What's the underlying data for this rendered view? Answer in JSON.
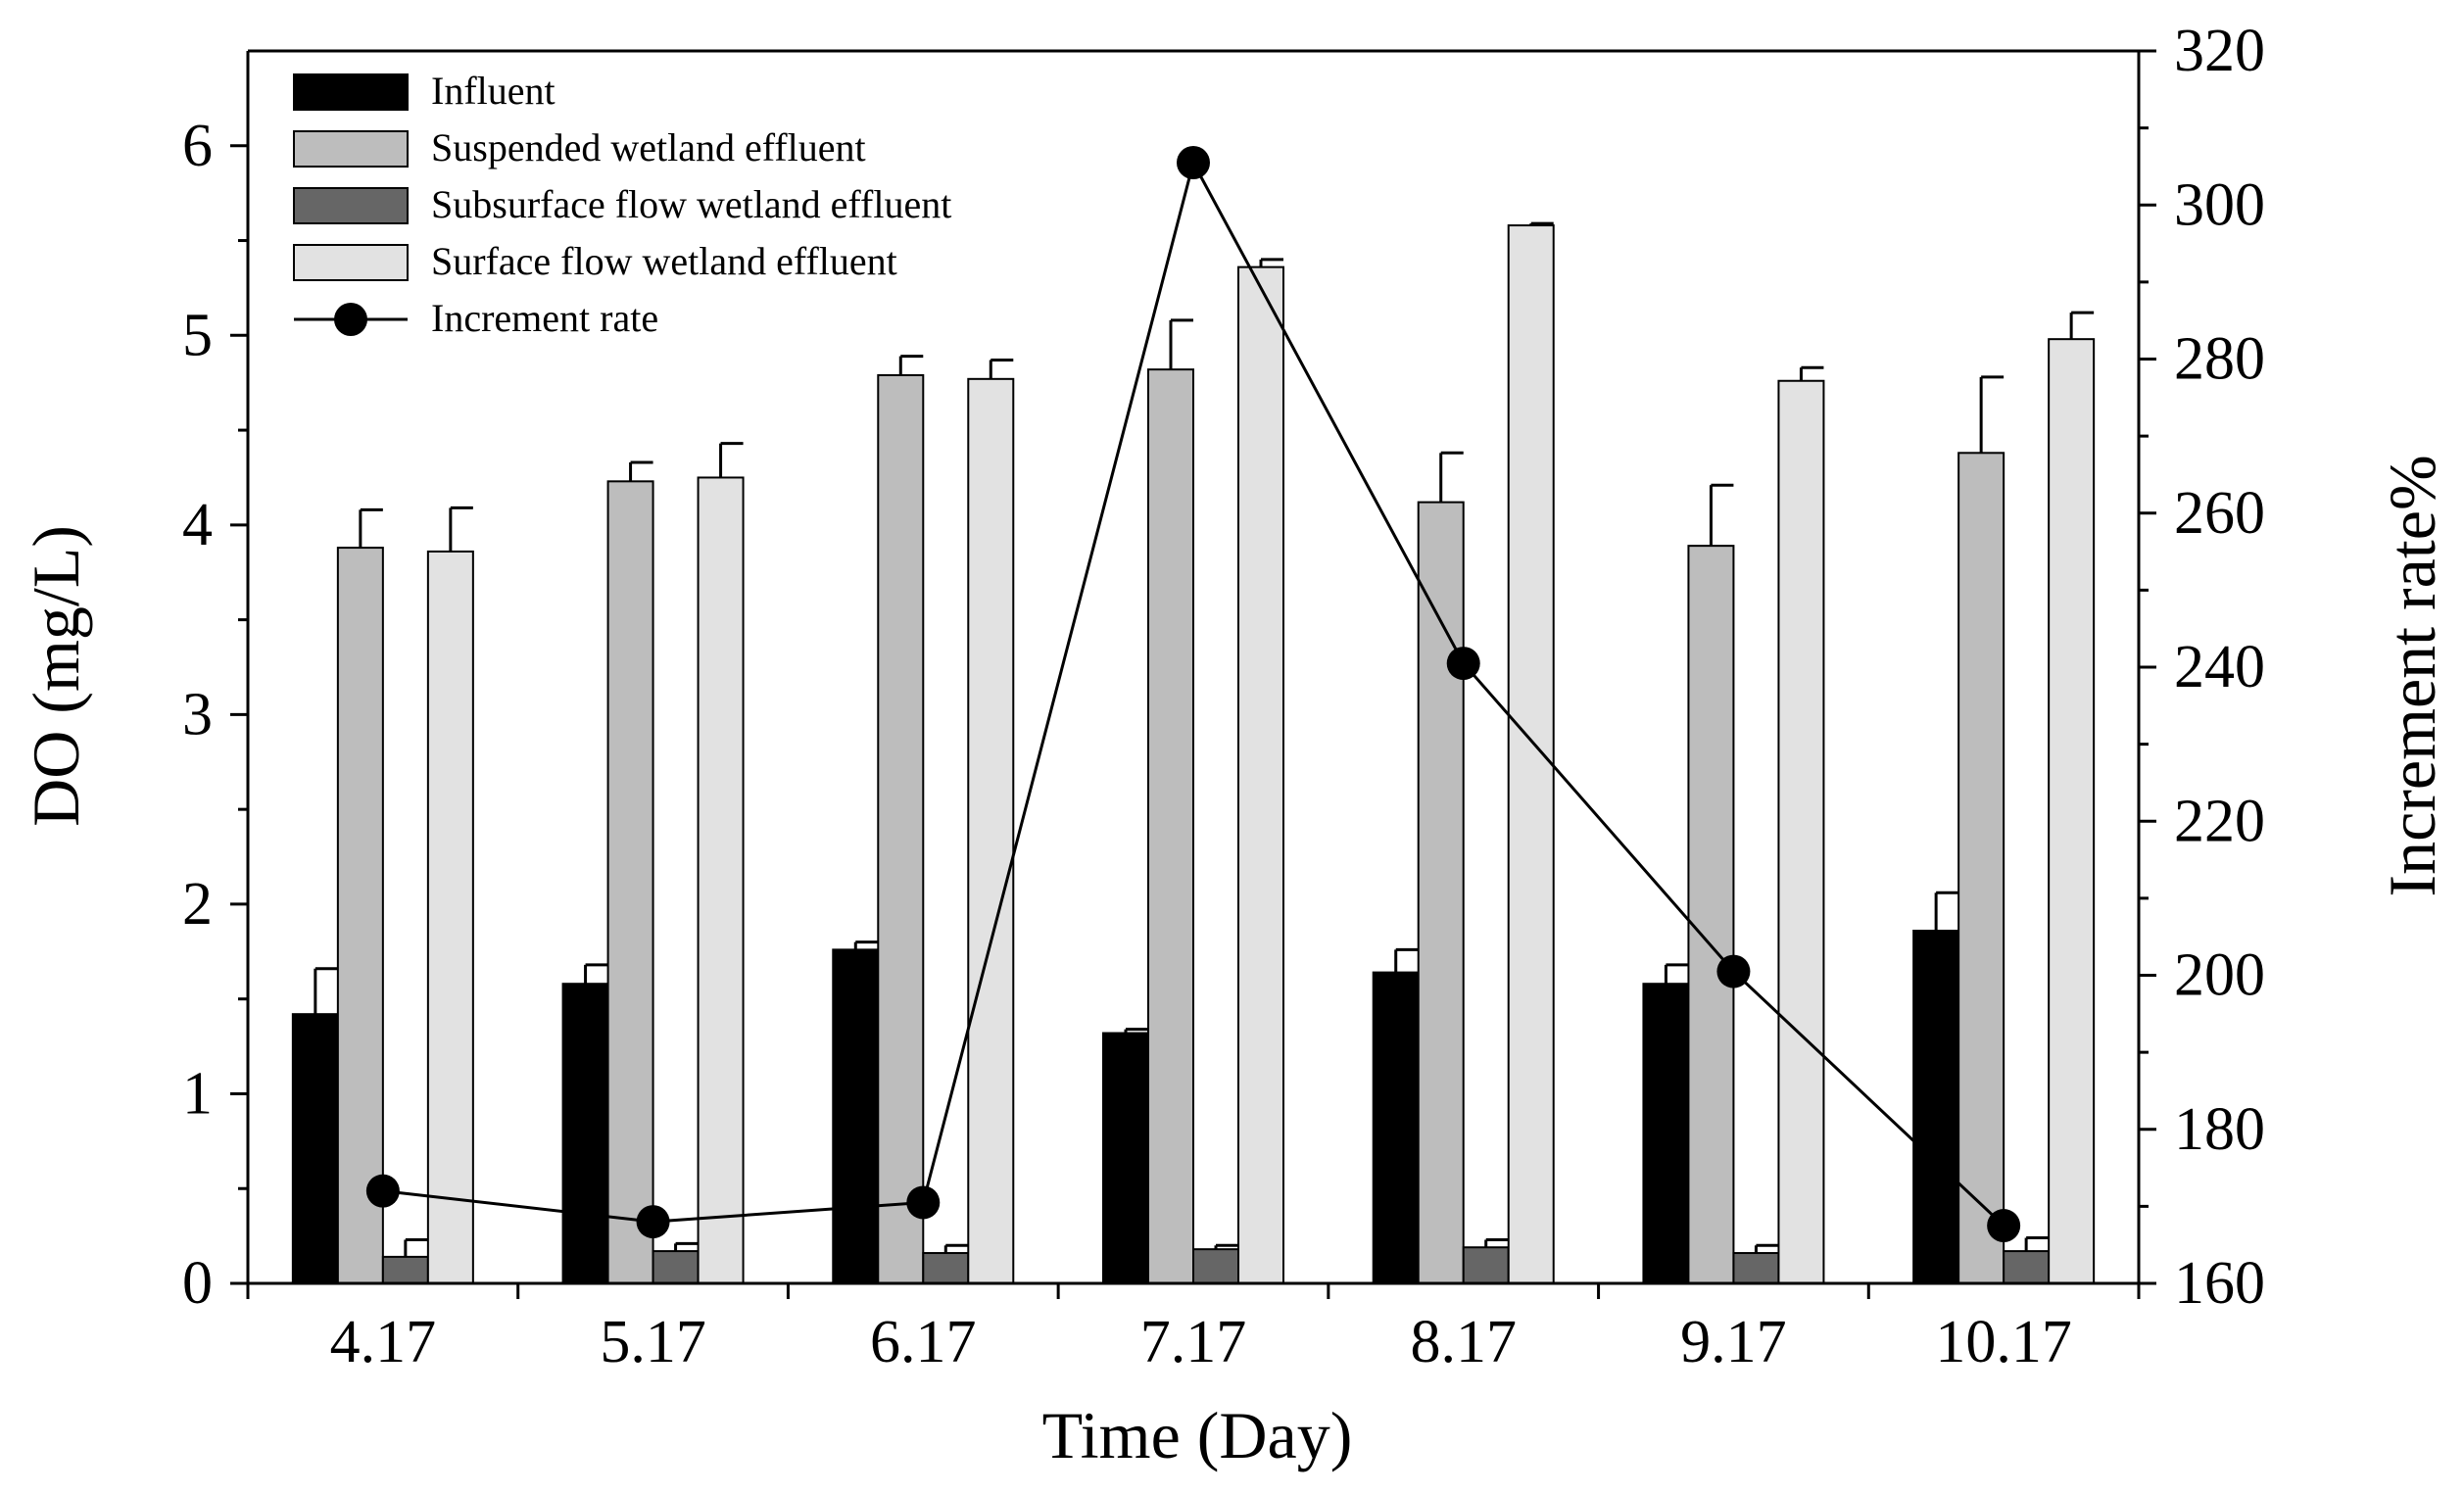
{
  "chart_data": {
    "type": "bar",
    "title": "",
    "xlabel": "Time (Day)",
    "ylabel": "DO (mg/L)",
    "y2label": "Increment rate%",
    "categories": [
      "4.17",
      "5.17",
      "6.17",
      "7.17",
      "8.17",
      "9.17",
      "10.17"
    ],
    "ylim": [
      0,
      6.5
    ],
    "yticks": [
      0,
      1,
      2,
      3,
      4,
      5,
      6
    ],
    "y2lim": [
      160,
      320
    ],
    "y2ticks": [
      160,
      180,
      200,
      220,
      240,
      260,
      280,
      300,
      320
    ],
    "legend_position": "top-left",
    "series": [
      {
        "name": "Influent",
        "color": "#000000",
        "values": [
          1.42,
          1.58,
          1.76,
          1.32,
          1.64,
          1.58,
          1.86
        ],
        "errors": [
          0.24,
          0.1,
          0.04,
          0.02,
          0.12,
          0.1,
          0.2
        ]
      },
      {
        "name": "Suspended wetland  effluent",
        "color": "#bdbdbd",
        "values": [
          3.88,
          4.23,
          4.79,
          4.82,
          4.12,
          3.89,
          4.38
        ],
        "errors": [
          0.2,
          0.1,
          0.1,
          0.26,
          0.26,
          0.32,
          0.4
        ]
      },
      {
        "name": "Subsurface flow wetland effluent",
        "color": "#666666",
        "values": [
          0.14,
          0.17,
          0.16,
          0.18,
          0.19,
          0.16,
          0.17
        ],
        "errors": [
          0.09,
          0.04,
          0.04,
          0.02,
          0.04,
          0.04,
          0.07
        ]
      },
      {
        "name": "Surface flow wetland  effluent",
        "color": "#e2e2e2",
        "values": [
          3.86,
          4.25,
          4.77,
          5.36,
          5.58,
          4.76,
          4.98
        ],
        "errors": [
          0.23,
          0.18,
          0.1,
          0.04,
          0.01,
          0.07,
          0.14
        ]
      }
    ],
    "line_series": {
      "name": "Increment rate",
      "axis": "right",
      "values": [
        172,
        168,
        170.5,
        305.5,
        240.5,
        200.5,
        167.5
      ]
    }
  }
}
